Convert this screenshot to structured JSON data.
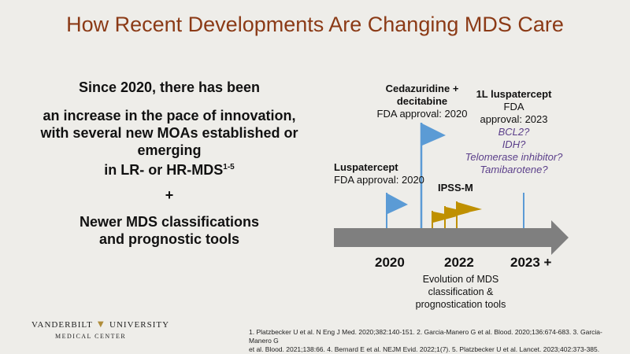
{
  "title": "How Recent Developments Are Changing MDS Care",
  "left": {
    "line1": "Since 2020, there has been",
    "line2": "an increase in the pace of innovation,",
    "line3": "with several new MOAs established or",
    "line4": "emerging",
    "line5": "in LR- or HR-MDS",
    "line5_sup": "1-5",
    "plus": "+",
    "line6": "Newer MDS classifications",
    "line7": "and prognostic tools"
  },
  "timeline": {
    "ticks": [
      "2020",
      "2022",
      "2023 +"
    ],
    "luspatercept": {
      "name": "Luspatercept",
      "sub": "FDA approval: 2020"
    },
    "cedazuridine": {
      "name1": "Cedazuridine +",
      "name2": "decitabine",
      "sub": "FDA approval: 2020"
    },
    "ipssm": {
      "name": "IPSS-M"
    },
    "first_line": {
      "name": "1L luspatercept",
      "suffix": " FDA",
      "sub": "approval: 2023"
    },
    "emerging": [
      "BCL2?",
      "IDH?",
      "Telomerase inhibitor?",
      "Tamibarotene?"
    ],
    "evolution": [
      "Evolution of MDS",
      "classification &",
      "prognostication tools"
    ]
  },
  "colors": {
    "title": "#8b3a16",
    "arrow": "#7f7f7f",
    "blue_flag": "#5b9bd5",
    "gold_flag": "#bf9000",
    "purple": "#5b3f8a"
  },
  "footer": {
    "logo_left": "VANDERBILT",
    "logo_right": "UNIVERSITY",
    "logo_sub": "MEDICAL CENTER",
    "refs_line1": "1. Platzbecker U et al. N Eng J Med. 2020;382:140-151. 2. Garcia-Manero G et al. Blood. 2020;136:674-683. 3. Garcia-Manero G",
    "refs_line2": "et al. Blood. 2021;138:66. 4. Bernard E et al. NEJM Evid. 2022;1(7). 5. Platzbecker U et al. Lancet. 2023;402:373-385."
  }
}
